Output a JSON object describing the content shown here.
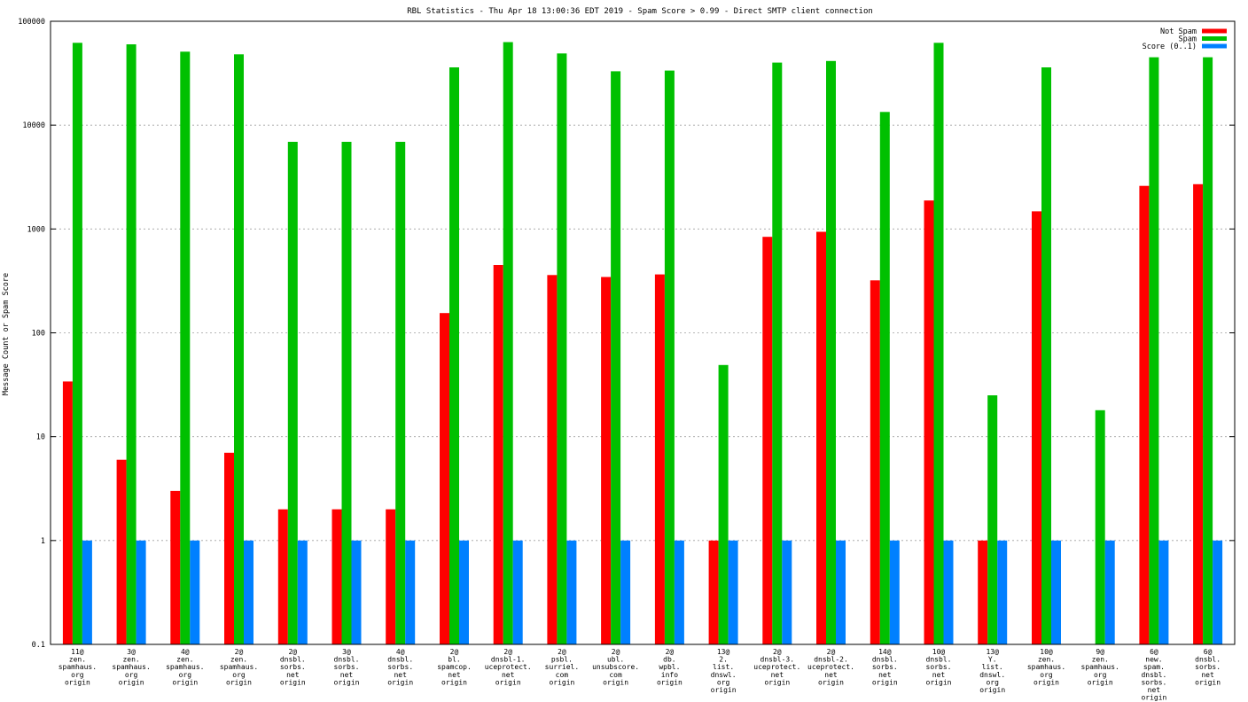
{
  "chart_data": {
    "type": "bar",
    "title": "RBL Statistics - Thu Apr 18 13:00:36 EDT 2019 - Spam Score > 0.99 - Direct SMTP client connection",
    "xlabel": "",
    "ylabel": "Message Count or Spam Score",
    "yscale": "log",
    "ylim": [
      0.1,
      100000
    ],
    "yticks": [
      "0.1",
      "1",
      "10",
      "100",
      "1000",
      "10000",
      "100000"
    ],
    "grid": true,
    "legend_position": "top-right",
    "categories": [
      [
        "11@",
        "zen.",
        "spamhaus.",
        "org",
        "origin"
      ],
      [
        "3@",
        "zen.",
        "spamhaus.",
        "org",
        "origin"
      ],
      [
        "4@",
        "zen.",
        "spamhaus.",
        "org",
        "origin"
      ],
      [
        "2@",
        "zen.",
        "spamhaus.",
        "org",
        "origin"
      ],
      [
        "2@",
        "dnsbl.",
        "sorbs.",
        "net",
        "origin"
      ],
      [
        "3@",
        "dnsbl.",
        "sorbs.",
        "net",
        "origin"
      ],
      [
        "4@",
        "dnsbl.",
        "sorbs.",
        "net",
        "origin"
      ],
      [
        "2@",
        "bl.",
        "spamcop.",
        "net",
        "origin"
      ],
      [
        "2@",
        "dnsbl-1.",
        "uceprotect.",
        "net",
        "origin"
      ],
      [
        "2@",
        "psbl.",
        "surriel.",
        "com",
        "origin"
      ],
      [
        "2@",
        "ubl.",
        "unsubscore.",
        "com",
        "origin"
      ],
      [
        "2@",
        "db.",
        "wpbl.",
        "info",
        "origin"
      ],
      [
        "13@",
        "2.",
        "list.",
        "dnswl.",
        "org",
        "origin"
      ],
      [
        "2@",
        "dnsbl-3.",
        "uceprotect.",
        "net",
        "origin"
      ],
      [
        "2@",
        "dnsbl-2.",
        "uceprotect.",
        "net",
        "origin"
      ],
      [
        "14@",
        "dnsbl.",
        "sorbs.",
        "net",
        "origin"
      ],
      [
        "10@",
        "dnsbl.",
        "sorbs.",
        "net",
        "origin"
      ],
      [
        "13@",
        "Y.",
        "list.",
        "dnswl.",
        "org",
        "origin"
      ],
      [
        "10@",
        "zen.",
        "spamhaus.",
        "org",
        "origin"
      ],
      [
        "9@",
        "zen.",
        "spamhaus.",
        "org",
        "origin"
      ],
      [
        "6@",
        "new.",
        "spam.",
        "dnsbl.",
        "sorbs.",
        "net",
        "origin"
      ],
      [
        "6@",
        "dnsbl.",
        "sorbs.",
        "net",
        "origin"
      ]
    ],
    "series": [
      {
        "name": "Not Spam",
        "color": "#ff0000",
        "values": [
          34,
          6,
          3,
          7,
          2,
          2,
          2,
          155,
          450,
          360,
          345,
          365,
          1,
          840,
          940,
          320,
          1880,
          1,
          1480,
          null,
          2600,
          2700
        ]
      },
      {
        "name": "Spam",
        "color": "#00c000",
        "values": [
          62000,
          60000,
          51000,
          48000,
          6900,
          6900,
          6900,
          36000,
          63000,
          49000,
          33000,
          33500,
          49,
          40000,
          41500,
          13400,
          62000,
          25,
          36000,
          18,
          45000,
          45000
        ]
      },
      {
        "name": "Score (0..1)",
        "color": "#0080ff",
        "values": [
          1,
          1,
          1,
          1,
          1,
          1,
          1,
          1,
          1,
          1,
          1,
          1,
          1,
          1,
          1,
          1,
          1,
          1,
          1,
          1,
          1,
          1
        ]
      }
    ]
  }
}
